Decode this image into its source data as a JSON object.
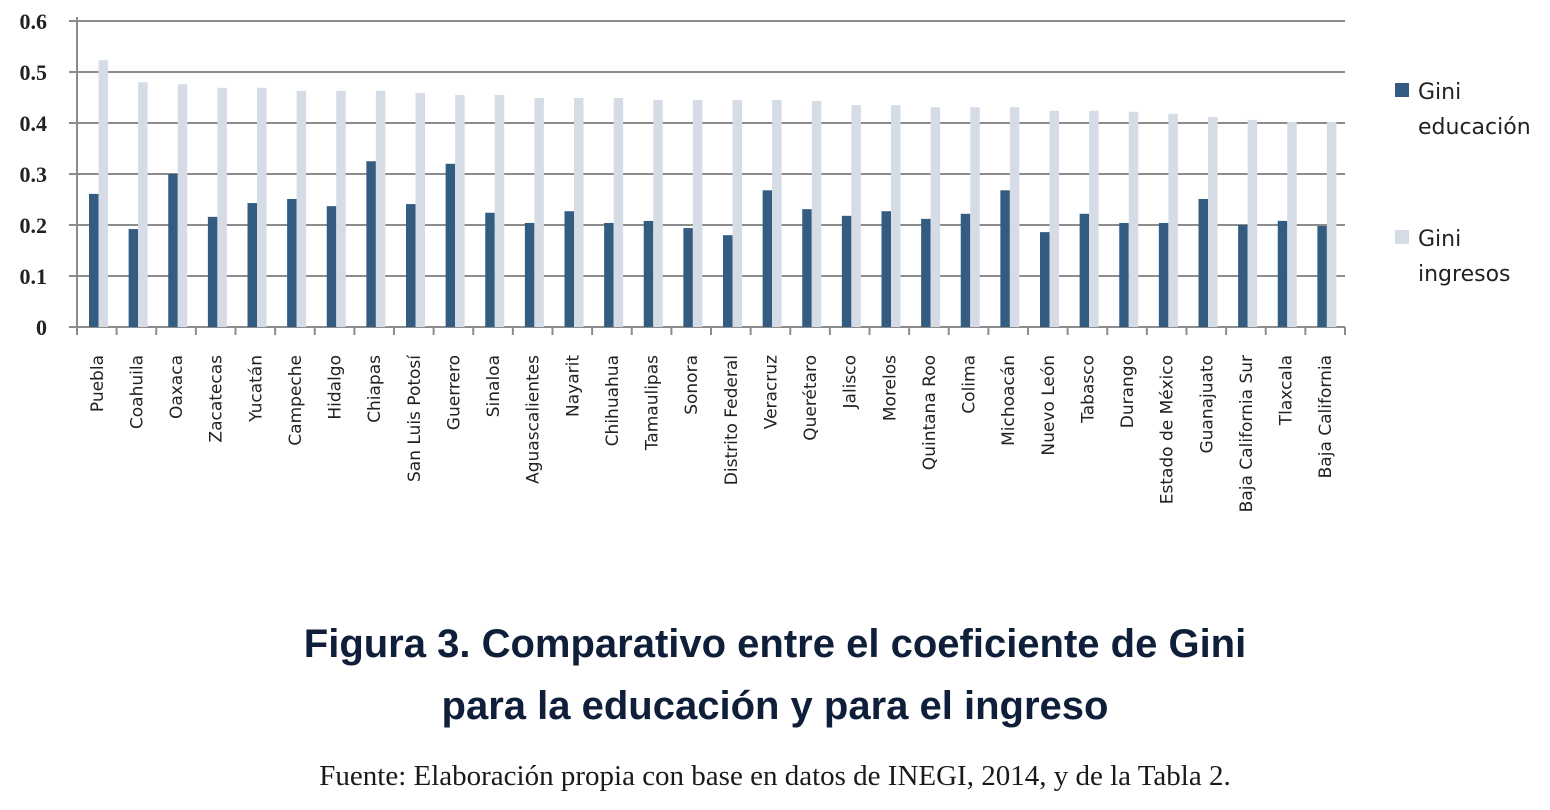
{
  "chart_data": {
    "type": "bar",
    "title": "",
    "xlabel": "",
    "ylabel": "",
    "ylim": [
      0,
      0.6
    ],
    "yticks": [
      "0",
      "0.1",
      "0.2",
      "0.3",
      "0.4",
      "0.5",
      "0.6"
    ],
    "grid": true,
    "legend_position": "right",
    "categories": [
      "Puebla",
      "Coahuila",
      "Oaxaca",
      "Zacatecas",
      "Yucatán",
      "Campeche",
      "Hidalgo",
      "Chiapas",
      "San Luis Potosí",
      "Guerrero",
      "Sinaloa",
      "Aguascalientes",
      "Nayarit",
      "Chihuahua",
      "Tamaulipas",
      "Sonora",
      "Distrito Federal",
      "Veracruz",
      "Querétaro",
      "Jalisco",
      "Morelos",
      "Quintana Roo",
      "Colima",
      "Michoacán",
      "Nuevo León",
      "Tabasco",
      "Durango",
      "Estado de México",
      "Guanajuato",
      "Baja California Sur",
      "Tlaxcala",
      "Baja California"
    ],
    "series": [
      {
        "name": "Gini educación",
        "legend_lines": [
          "Gini",
          "educación"
        ],
        "color": "#335c80",
        "values": [
          0.261,
          0.192,
          0.3,
          0.216,
          0.243,
          0.251,
          0.237,
          0.325,
          0.241,
          0.32,
          0.224,
          0.204,
          0.227,
          0.204,
          0.208,
          0.194,
          0.18,
          0.268,
          0.231,
          0.218,
          0.227,
          0.212,
          0.222,
          0.268,
          0.186,
          0.222,
          0.204,
          0.204,
          0.251,
          0.2,
          0.208,
          0.198
        ]
      },
      {
        "name": "Gini ingresos",
        "legend_lines": [
          "Gini",
          "ingresos"
        ],
        "color": "#d5dce6",
        "values": [
          0.523,
          0.48,
          0.476,
          0.469,
          0.469,
          0.463,
          0.463,
          0.463,
          0.459,
          0.455,
          0.455,
          0.449,
          0.449,
          0.449,
          0.445,
          0.445,
          0.445,
          0.445,
          0.443,
          0.435,
          0.435,
          0.431,
          0.431,
          0.431,
          0.424,
          0.424,
          0.422,
          0.418,
          0.412,
          0.406,
          0.402,
          0.402
        ]
      }
    ]
  },
  "caption": {
    "line1": "Figura 3. Comparativo entre el coeficiente de Gini",
    "line2": "para la educación y para el ingreso",
    "source": "Fuente: Elaboración propia con base en datos de INEGI, 2014, y de la Tabla 2."
  }
}
